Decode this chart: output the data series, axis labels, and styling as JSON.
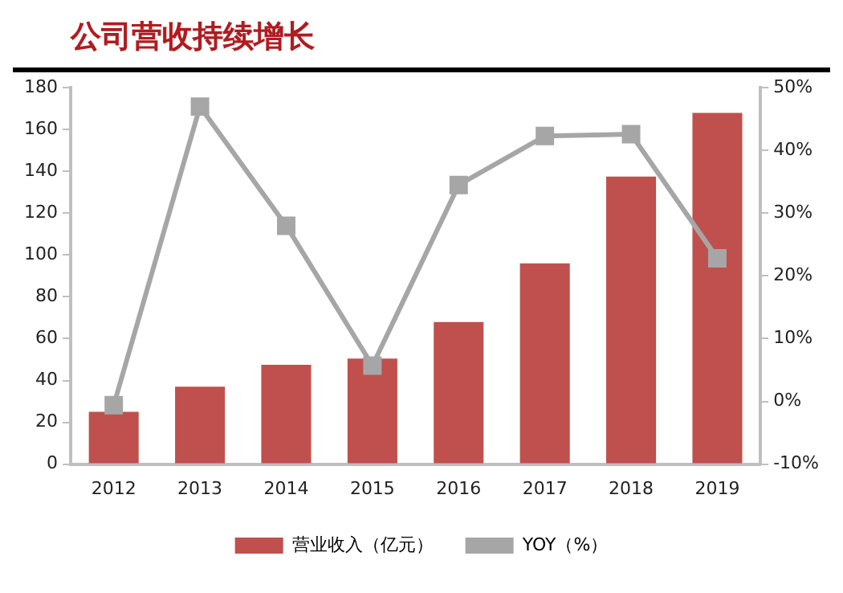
{
  "chart_data": {
    "type": "bar",
    "title": "公司营收持续增长",
    "categories": [
      "2012",
      "2013",
      "2014",
      "2015",
      "2016",
      "2017",
      "2018",
      "2019"
    ],
    "series": [
      {
        "name": "营业收入（亿元）",
        "color": "#c0504d",
        "values": [
          25,
          37,
          47.5,
          50.5,
          68,
          96,
          137.5,
          168
        ]
      },
      {
        "name": "YOY（%）",
        "type": "line",
        "axis": "y2",
        "color": "#a6a6a6",
        "marker": "square",
        "values": [
          -0.6,
          47,
          28,
          5.7,
          34.5,
          42.3,
          42.6,
          22.8
        ]
      }
    ],
    "ylim": [
      0,
      180
    ],
    "yticks": [
      0,
      20,
      40,
      60,
      80,
      100,
      120,
      140,
      160,
      180
    ],
    "y2lim": [
      -10,
      50
    ],
    "y2ticks": [
      {
        "value": -10,
        "label": "-10%"
      },
      {
        "value": 0,
        "label": "0%"
      },
      {
        "value": 10,
        "label": "10%"
      },
      {
        "value": 20,
        "label": "20%"
      },
      {
        "value": 30,
        "label": "30%"
      },
      {
        "value": 40,
        "label": "40%"
      },
      {
        "value": 50,
        "label": "50%"
      }
    ],
    "grid": false,
    "legend": "bottom"
  }
}
